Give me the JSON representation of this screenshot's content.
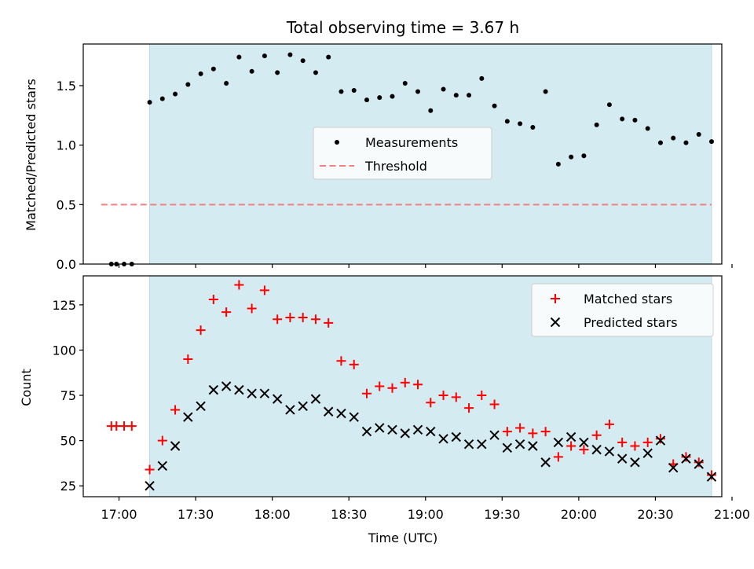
{
  "chart_data": [
    {
      "type": "scatter",
      "title": "Total observing time = 3.67 h",
      "xlabel": "",
      "ylabel": "Matched/Predicted stars",
      "xlim": [
        "16:46",
        "20:56"
      ],
      "ylim": [
        0,
        1.85
      ],
      "yticks": [
        0.0,
        0.5,
        1.0,
        1.5
      ],
      "ytick_labels": [
        "0.0",
        "0.5",
        "1.0",
        "1.5"
      ],
      "shaded_interval": [
        "17:12",
        "20:52"
      ],
      "shade_color": "#d4ebf1",
      "legend": {
        "position": "center",
        "entries": [
          "Measurements",
          "Threshold"
        ]
      },
      "threshold": {
        "value": 0.5,
        "x_start": "16:53",
        "x_end": "20:52",
        "color": "#f08080",
        "style": "dashed",
        "name": "Threshold"
      },
      "series": [
        {
          "name": "Measurements",
          "color": "#000000",
          "marker": "dot",
          "points": [
            [
              "16:57",
              0.0
            ],
            [
              "16:59",
              0.0
            ],
            [
              "17:02",
              0.0
            ],
            [
              "17:05",
              0.0
            ],
            [
              "17:12",
              1.36
            ],
            [
              "17:17",
              1.39
            ],
            [
              "17:22",
              1.43
            ],
            [
              "17:27",
              1.51
            ],
            [
              "17:32",
              1.6
            ],
            [
              "17:37",
              1.64
            ],
            [
              "17:42",
              1.52
            ],
            [
              "17:47",
              1.74
            ],
            [
              "17:52",
              1.62
            ],
            [
              "17:57",
              1.75
            ],
            [
              "18:02",
              1.61
            ],
            [
              "18:07",
              1.76
            ],
            [
              "18:12",
              1.71
            ],
            [
              "18:17",
              1.61
            ],
            [
              "18:22",
              1.74
            ],
            [
              "18:27",
              1.45
            ],
            [
              "18:32",
              1.46
            ],
            [
              "18:37",
              1.38
            ],
            [
              "18:42",
              1.4
            ],
            [
              "18:47",
              1.41
            ],
            [
              "18:52",
              1.52
            ],
            [
              "18:57",
              1.45
            ],
            [
              "19:02",
              1.29
            ],
            [
              "19:07",
              1.47
            ],
            [
              "19:12",
              1.42
            ],
            [
              "19:17",
              1.42
            ],
            [
              "19:22",
              1.56
            ],
            [
              "19:27",
              1.33
            ],
            [
              "19:32",
              1.2
            ],
            [
              "19:37",
              1.18
            ],
            [
              "19:42",
              1.15
            ],
            [
              "19:47",
              1.45
            ],
            [
              "19:52",
              0.84
            ],
            [
              "19:57",
              0.9
            ],
            [
              "20:02",
              0.91
            ],
            [
              "20:07",
              1.17
            ],
            [
              "20:12",
              1.34
            ],
            [
              "20:17",
              1.22
            ],
            [
              "20:22",
              1.21
            ],
            [
              "20:27",
              1.14
            ],
            [
              "20:32",
              1.02
            ],
            [
              "20:37",
              1.06
            ],
            [
              "20:42",
              1.02
            ],
            [
              "20:47",
              1.09
            ],
            [
              "20:52",
              1.03
            ]
          ]
        }
      ]
    },
    {
      "type": "scatter",
      "title": "",
      "xlabel": "Time (UTC)",
      "ylabel": "Count",
      "xlim": [
        "16:46",
        "20:56"
      ],
      "ylim": [
        19,
        141
      ],
      "xticks": [
        "17:00",
        "17:30",
        "18:00",
        "18:30",
        "19:00",
        "19:30",
        "20:00",
        "20:30",
        "21:00"
      ],
      "yticks": [
        25,
        50,
        75,
        100,
        125
      ],
      "ytick_labels": [
        "25",
        "50",
        "75",
        "100",
        "125"
      ],
      "shaded_interval": [
        "17:12",
        "20:52"
      ],
      "shade_color": "#d4ebf1",
      "legend": {
        "position": "top-right",
        "entries": [
          "Matched stars",
          "Predicted stars"
        ]
      },
      "series": [
        {
          "name": "Matched stars",
          "color": "#ff0000",
          "marker": "plus",
          "points": [
            [
              "16:57",
              58
            ],
            [
              "16:59",
              58
            ],
            [
              "17:02",
              58
            ],
            [
              "17:05",
              58
            ],
            [
              "17:12",
              34
            ],
            [
              "17:17",
              50
            ],
            [
              "17:22",
              67
            ],
            [
              "17:27",
              95
            ],
            [
              "17:32",
              111
            ],
            [
              "17:37",
              128
            ],
            [
              "17:42",
              121
            ],
            [
              "17:47",
              136
            ],
            [
              "17:52",
              123
            ],
            [
              "17:57",
              133
            ],
            [
              "18:02",
              117
            ],
            [
              "18:07",
              118
            ],
            [
              "18:12",
              118
            ],
            [
              "18:17",
              117
            ],
            [
              "18:22",
              115
            ],
            [
              "18:27",
              94
            ],
            [
              "18:32",
              92
            ],
            [
              "18:37",
              76
            ],
            [
              "18:42",
              80
            ],
            [
              "18:47",
              79
            ],
            [
              "18:52",
              82
            ],
            [
              "18:57",
              81
            ],
            [
              "19:02",
              71
            ],
            [
              "19:07",
              75
            ],
            [
              "19:12",
              74
            ],
            [
              "19:17",
              68
            ],
            [
              "19:22",
              75
            ],
            [
              "19:27",
              70
            ],
            [
              "19:32",
              55
            ],
            [
              "19:37",
              57
            ],
            [
              "19:42",
              54
            ],
            [
              "19:47",
              55
            ],
            [
              "19:52",
              41
            ],
            [
              "19:57",
              47
            ],
            [
              "20:02",
              45
            ],
            [
              "20:07",
              53
            ],
            [
              "20:12",
              59
            ],
            [
              "20:17",
              49
            ],
            [
              "20:22",
              47
            ],
            [
              "20:27",
              49
            ],
            [
              "20:32",
              51
            ],
            [
              "20:37",
              37
            ],
            [
              "20:42",
              41
            ],
            [
              "20:47",
              38
            ],
            [
              "20:52",
              31
            ]
          ]
        },
        {
          "name": "Predicted stars",
          "color": "#000000",
          "marker": "x",
          "points": [
            [
              "17:12",
              25
            ],
            [
              "17:17",
              36
            ],
            [
              "17:22",
              47
            ],
            [
              "17:27",
              63
            ],
            [
              "17:32",
              69
            ],
            [
              "17:37",
              78
            ],
            [
              "17:42",
              80
            ],
            [
              "17:47",
              78
            ],
            [
              "17:52",
              76
            ],
            [
              "17:57",
              76
            ],
            [
              "18:02",
              73
            ],
            [
              "18:07",
              67
            ],
            [
              "18:12",
              69
            ],
            [
              "18:17",
              73
            ],
            [
              "18:22",
              66
            ],
            [
              "18:27",
              65
            ],
            [
              "18:32",
              63
            ],
            [
              "18:37",
              55
            ],
            [
              "18:42",
              57
            ],
            [
              "18:47",
              56
            ],
            [
              "18:52",
              54
            ],
            [
              "18:57",
              56
            ],
            [
              "19:02",
              55
            ],
            [
              "19:07",
              51
            ],
            [
              "19:12",
              52
            ],
            [
              "19:17",
              48
            ],
            [
              "19:22",
              48
            ],
            [
              "19:27",
              53
            ],
            [
              "19:32",
              46
            ],
            [
              "19:37",
              48
            ],
            [
              "19:42",
              47
            ],
            [
              "19:47",
              38
            ],
            [
              "19:52",
              49
            ],
            [
              "19:57",
              52
            ],
            [
              "20:02",
              49
            ],
            [
              "20:07",
              45
            ],
            [
              "20:12",
              44
            ],
            [
              "20:17",
              40
            ],
            [
              "20:22",
              38
            ],
            [
              "20:27",
              43
            ],
            [
              "20:32",
              50
            ],
            [
              "20:37",
              35
            ],
            [
              "20:42",
              40
            ],
            [
              "20:47",
              37
            ],
            [
              "20:52",
              30
            ]
          ]
        }
      ]
    }
  ]
}
